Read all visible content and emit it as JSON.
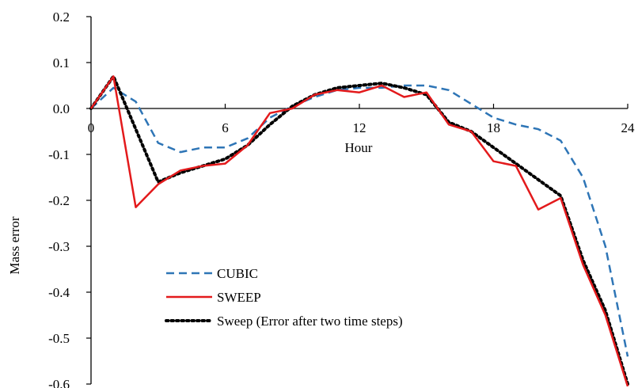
{
  "chart_data": {
    "type": "line",
    "title": "",
    "xlabel": "Hour",
    "ylabel": "Mass error",
    "xlim": [
      0,
      24
    ],
    "ylim": [
      -0.6,
      0.2
    ],
    "x_ticks": [
      0,
      6,
      12,
      18,
      24
    ],
    "x_tick_labels": [
      "0",
      "6",
      "12",
      "18",
      "24"
    ],
    "y_ticks": [
      0.2,
      0.1,
      0.0,
      -0.1,
      -0.2,
      -0.3,
      -0.4,
      -0.5,
      -0.6
    ],
    "y_tick_labels": [
      "0.2",
      "0.1",
      "0.0",
      "-0.1",
      "-0.2",
      "-0.3",
      "-0.4",
      "-0.5",
      "-0.6"
    ],
    "grid": false,
    "legend_position": "bottom-left",
    "series": [
      {
        "name": "CUBIC",
        "color": "#2E75B6",
        "style": "dashed",
        "x": [
          0,
          1,
          2,
          3,
          4,
          5,
          6,
          7,
          8,
          9,
          10,
          11,
          12,
          13,
          14,
          15,
          16,
          17,
          18,
          19,
          20,
          21,
          22,
          23,
          24
        ],
        "y": [
          0.0,
          0.045,
          0.015,
          -0.075,
          -0.095,
          -0.085,
          -0.085,
          -0.065,
          -0.02,
          0.005,
          0.025,
          0.04,
          0.045,
          0.045,
          0.05,
          0.05,
          0.04,
          0.01,
          -0.02,
          -0.035,
          -0.045,
          -0.07,
          -0.15,
          -0.3,
          -0.54
        ]
      },
      {
        "name": "SWEEP",
        "color": "#E31A1C",
        "style": "solid",
        "x": [
          0,
          1,
          2,
          3,
          4,
          5,
          6,
          7,
          8,
          9,
          10,
          11,
          12,
          13,
          14,
          15,
          16,
          17,
          18,
          19,
          20,
          21,
          22,
          23,
          24
        ],
        "y": [
          0.0,
          0.07,
          -0.215,
          -0.165,
          -0.135,
          -0.125,
          -0.12,
          -0.08,
          -0.01,
          0.0,
          0.03,
          0.04,
          0.035,
          0.05,
          0.025,
          0.035,
          -0.035,
          -0.05,
          -0.115,
          -0.125,
          -0.22,
          -0.195,
          -0.34,
          -0.45,
          -0.605
        ]
      },
      {
        "name": "Sweep (Error after two time steps)",
        "color": "#000000",
        "style": "dotted",
        "x": [
          0,
          1,
          2,
          3,
          4,
          5,
          6,
          7,
          8,
          9,
          10,
          11,
          12,
          13,
          14,
          15,
          16,
          17,
          18,
          19,
          20,
          21,
          22,
          23,
          24
        ],
        "y": [
          0.0,
          0.07,
          -0.045,
          -0.16,
          -0.14,
          -0.125,
          -0.11,
          -0.08,
          -0.035,
          0.005,
          0.03,
          0.045,
          0.05,
          0.055,
          0.045,
          0.03,
          -0.03,
          -0.05,
          -0.085,
          -0.12,
          -0.155,
          -0.19,
          -0.33,
          -0.44,
          -0.6
        ]
      }
    ]
  }
}
